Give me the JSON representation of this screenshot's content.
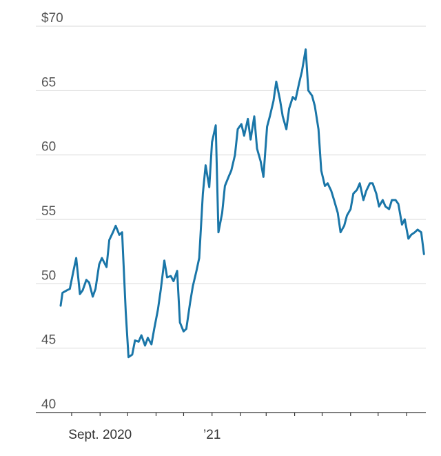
{
  "chart_data": {
    "type": "line",
    "title": "",
    "xlabel": "",
    "ylabel": "",
    "ylim": [
      40,
      70
    ],
    "y_ticks": [
      40,
      45,
      50,
      55,
      60,
      65,
      70
    ],
    "y_tick_labels": [
      "40",
      "45",
      "50",
      "55",
      "60",
      "65",
      "$70"
    ],
    "x_tick_labels": [
      {
        "label": "Sept. 2020",
        "date": "2020-09-01"
      },
      {
        "label": "’21",
        "date": "2021-01-01"
      }
    ],
    "x_tick_marks": [
      "2020-08-01",
      "2020-09-01",
      "2020-10-01",
      "2020-11-01",
      "2020-12-01",
      "2021-01-01",
      "2021-02-01",
      "2021-03-01",
      "2021-04-01",
      "2021-05-01",
      "2021-06-01",
      "2021-07-01",
      "2021-08-01"
    ],
    "xlim": [
      "2020-07-20",
      "2021-08-22"
    ],
    "grid": true,
    "legend": "none",
    "color": "#1a76a8",
    "series": [
      {
        "x": [
          "2020-07-20",
          "2020-07-22",
          "2020-07-27",
          "2020-07-30",
          "2020-08-03",
          "2020-08-06",
          "2020-08-10",
          "2020-08-13",
          "2020-08-17",
          "2020-08-20",
          "2020-08-24",
          "2020-08-27",
          "2020-08-31",
          "2020-09-03",
          "2020-09-08",
          "2020-09-11",
          "2020-09-15",
          "2020-09-18",
          "2020-09-22",
          "2020-09-25",
          "2020-09-29",
          "2020-10-02",
          "2020-10-06",
          "2020-10-09",
          "2020-10-13",
          "2020-10-16",
          "2020-10-20",
          "2020-10-23",
          "2020-10-27",
          "2020-10-30",
          "2020-11-03",
          "2020-11-06",
          "2020-11-10",
          "2020-11-13",
          "2020-11-17",
          "2020-11-20",
          "2020-11-24",
          "2020-11-27",
          "2020-12-01",
          "2020-12-04",
          "2020-12-08",
          "2020-12-11",
          "2020-12-15",
          "2020-12-18",
          "2020-12-22",
          "2020-12-25",
          "2020-12-29",
          "2021-01-01",
          "2021-01-05",
          "2021-01-08",
          "2021-01-12",
          "2021-01-15",
          "2021-01-19",
          "2021-01-22",
          "2021-01-26",
          "2021-01-29",
          "2021-02-02",
          "2021-02-05",
          "2021-02-09",
          "2021-02-12",
          "2021-02-16",
          "2021-02-19",
          "2021-02-23",
          "2021-02-26",
          "2021-03-02",
          "2021-03-05",
          "2021-03-09",
          "2021-03-12",
          "2021-03-16",
          "2021-03-19",
          "2021-03-23",
          "2021-03-26",
          "2021-03-30",
          "2021-04-02",
          "2021-04-06",
          "2021-04-09",
          "2021-04-13",
          "2021-04-16",
          "2021-04-20",
          "2021-04-23",
          "2021-04-27",
          "2021-04-30",
          "2021-05-04",
          "2021-05-07",
          "2021-05-11",
          "2021-05-14",
          "2021-05-18",
          "2021-05-21",
          "2021-05-25",
          "2021-05-28",
          "2021-06-01",
          "2021-06-04",
          "2021-06-08",
          "2021-06-11",
          "2021-06-15",
          "2021-06-18",
          "2021-06-22",
          "2021-06-25",
          "2021-06-29",
          "2021-07-02",
          "2021-07-06",
          "2021-07-09",
          "2021-07-13",
          "2021-07-16",
          "2021-07-20",
          "2021-07-23",
          "2021-07-27",
          "2021-07-30",
          "2021-08-03",
          "2021-08-06",
          "2021-08-10",
          "2021-08-13",
          "2021-08-17",
          "2021-08-20"
        ],
        "y": [
          48.3,
          49.3,
          49.5,
          49.6,
          51.0,
          52.0,
          49.2,
          49.5,
          50.3,
          50.1,
          49.0,
          49.6,
          51.5,
          52.0,
          51.3,
          53.4,
          54.0,
          54.5,
          53.8,
          54.0,
          47.8,
          44.3,
          44.5,
          45.6,
          45.5,
          46.0,
          45.2,
          45.8,
          45.3,
          46.5,
          48.0,
          49.5,
          51.8,
          50.5,
          50.6,
          50.2,
          51.0,
          47.0,
          46.3,
          46.5,
          48.5,
          49.8,
          51.0,
          52.0,
          57.0,
          59.2,
          57.5,
          61.0,
          62.3,
          54.0,
          55.5,
          57.6,
          58.3,
          58.8,
          60.0,
          62.0,
          62.4,
          61.5,
          62.8,
          61.2,
          63.0,
          60.5,
          59.5,
          58.3,
          62.2,
          63.0,
          64.2,
          65.7,
          64.3,
          63.0,
          62.0,
          63.6,
          64.5,
          64.3,
          65.6,
          66.5,
          68.2,
          65.0,
          64.6,
          63.8,
          62.0,
          58.8,
          57.6,
          57.8,
          57.2,
          56.5,
          55.5,
          54.0,
          54.5,
          55.3,
          55.8,
          57.0,
          57.3,
          57.8,
          56.5,
          57.2,
          57.8,
          57.8,
          57.0,
          56.0,
          56.5,
          56.0,
          55.8,
          56.5,
          56.5,
          56.2,
          54.6,
          55.0,
          53.5,
          53.8,
          54.0,
          54.2,
          54.0,
          52.3
        ]
      }
    ]
  }
}
